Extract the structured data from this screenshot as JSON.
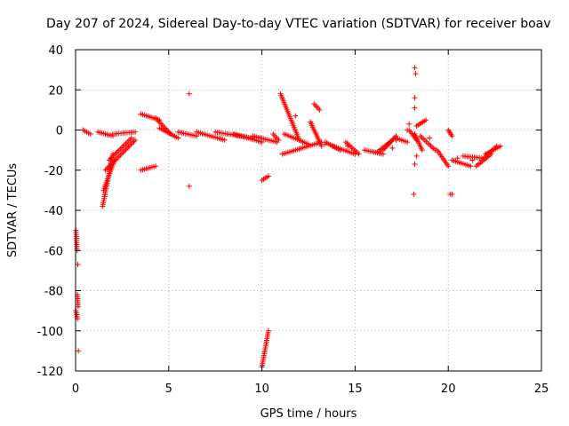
{
  "chart_data": {
    "type": "scatter",
    "title": "Day 207 of 2024, Sidereal Day-to-day VTEC variation (SDTVAR) for receiver boav",
    "xlabel": "GPS time / hours",
    "ylabel": "SDTVAR / TECUs",
    "xlim": [
      0,
      25
    ],
    "ylim": [
      -120,
      40
    ],
    "xticks": [
      0,
      5,
      10,
      15,
      20,
      25
    ],
    "yticks": [
      -120,
      -100,
      -80,
      -60,
      -40,
      -20,
      0,
      20,
      40
    ],
    "xtick_labels": [
      "0",
      "5",
      "10",
      "15",
      "20",
      "25"
    ],
    "ytick_labels": [
      "-120",
      "-100",
      "-80",
      "-60",
      "-40",
      "-20",
      "0",
      "20",
      "40"
    ],
    "grid": true,
    "marker": "plus",
    "colors": {
      "series": "#ff0000",
      "grid": "#a0a0a0",
      "frame": "#000000"
    },
    "series": [
      {
        "name": "SDTVAR",
        "arcs": [
          {
            "x": [
              0.02,
              0.08
            ],
            "y": [
              -50,
              -60
            ]
          },
          {
            "x": [
              0.02,
              0.1
            ],
            "y": [
              -90,
              -94
            ]
          },
          {
            "x": [
              0.1,
              0.14
            ],
            "y": [
              -82,
              -88
            ]
          },
          {
            "x": [
              0.4,
              0.8
            ],
            "y": [
              0,
              -2
            ]
          },
          {
            "x": [
              1.2,
              2.0
            ],
            "y": [
              -1,
              -3
            ]
          },
          {
            "x": [
              1.45,
              2.0
            ],
            "y": [
              -38,
              -12
            ]
          },
          {
            "x": [
              1.5,
              2.1
            ],
            "y": [
              -30,
              -15
            ]
          },
          {
            "x": [
              1.6,
              3.2
            ],
            "y": [
              -20,
              -5
            ]
          },
          {
            "x": [
              1.8,
              3.0
            ],
            "y": [
              -15,
              -4
            ]
          },
          {
            "x": [
              2.0,
              3.2
            ],
            "y": [
              -2,
              -1
            ]
          },
          {
            "x": [
              3.5,
              4.3
            ],
            "y": [
              -20,
              -18
            ]
          },
          {
            "x": [
              3.5,
              4.5
            ],
            "y": [
              8,
              5
            ]
          },
          {
            "x": [
              4.3,
              5.1
            ],
            "y": [
              6,
              -2
            ]
          },
          {
            "x": [
              4.5,
              5.5
            ],
            "y": [
              1,
              -4
            ]
          },
          {
            "x": [
              5.5,
              6.5
            ],
            "y": [
              -1,
              -3
            ]
          },
          {
            "x": [
              6.5,
              8.0
            ],
            "y": [
              -1,
              -5
            ]
          },
          {
            "x": [
              7.5,
              9.5
            ],
            "y": [
              -1,
              -4
            ]
          },
          {
            "x": [
              8.5,
              10.0
            ],
            "y": [
              -2,
              -6
            ]
          },
          {
            "x": [
              9.5,
              10.8
            ],
            "y": [
              -3,
              -6
            ]
          },
          {
            "x": [
              10.0,
              10.35
            ],
            "y": [
              -118,
              -100
            ]
          },
          {
            "x": [
              10.0,
              10.35
            ],
            "y": [
              -25,
              -23
            ]
          },
          {
            "x": [
              10.6,
              10.9
            ],
            "y": [
              -2,
              -5
            ]
          },
          {
            "x": [
              11.0,
              12.0
            ],
            "y": [
              18,
              -5
            ]
          },
          {
            "x": [
              11.1,
              13.2
            ],
            "y": [
              -12,
              -6
            ]
          },
          {
            "x": [
              11.2,
              12.5
            ],
            "y": [
              -2,
              -7
            ]
          },
          {
            "x": [
              12.6,
              13.2
            ],
            "y": [
              4,
              -8
            ]
          },
          {
            "x": [
              12.8,
              13.1
            ],
            "y": [
              13,
              10
            ]
          },
          {
            "x": [
              13.4,
              14.2
            ],
            "y": [
              -6,
              -10
            ]
          },
          {
            "x": [
              13.8,
              15.0
            ],
            "y": [
              -8,
              -12
            ]
          },
          {
            "x": [
              14.5,
              15.2
            ],
            "y": [
              -6,
              -12
            ]
          },
          {
            "x": [
              15.5,
              16.5
            ],
            "y": [
              -10,
              -12
            ]
          },
          {
            "x": [
              16.2,
              17.0
            ],
            "y": [
              -11,
              -5
            ]
          },
          {
            "x": [
              16.5,
              17.2
            ],
            "y": [
              -10,
              -3
            ]
          },
          {
            "x": [
              17.2,
              17.8
            ],
            "y": [
              -4,
              -6
            ]
          },
          {
            "x": [
              17.9,
              18.3
            ],
            "y": [
              0,
              -5
            ]
          },
          {
            "x": [
              18.2,
              18.6
            ],
            "y": [
              -2,
              -10
            ]
          },
          {
            "x": [
              18.3,
              18.8
            ],
            "y": [
              2,
              5
            ]
          },
          {
            "x": [
              18.5,
              19.3
            ],
            "y": [
              -3,
              -10
            ]
          },
          {
            "x": [
              19.4,
              20.0
            ],
            "y": [
              -10,
              -18
            ]
          },
          {
            "x": [
              20.0,
              20.2
            ],
            "y": [
              0,
              -3
            ]
          },
          {
            "x": [
              20.2,
              21.2
            ],
            "y": [
              -15,
              -18
            ]
          },
          {
            "x": [
              20.8,
              21.8
            ],
            "y": [
              -13,
              -14
            ]
          },
          {
            "x": [
              21.5,
              22.3
            ],
            "y": [
              -18,
              -12
            ]
          },
          {
            "x": [
              21.8,
              22.6
            ],
            "y": [
              -15,
              -8
            ]
          },
          {
            "x": [
              22.0,
              22.8
            ],
            "y": [
              -12,
              -8
            ]
          }
        ],
        "points": [
          {
            "x": 0.15,
            "y": -110
          },
          {
            "x": 0.12,
            "y": -67
          },
          {
            "x": 6.1,
            "y": 18
          },
          {
            "x": 6.1,
            "y": -28
          },
          {
            "x": 11.8,
            "y": 7
          },
          {
            "x": 12.2,
            "y": -6
          },
          {
            "x": 13.4,
            "y": -7
          },
          {
            "x": 14.6,
            "y": -8
          },
          {
            "x": 17.0,
            "y": -9
          },
          {
            "x": 17.2,
            "y": -5
          },
          {
            "x": 17.8,
            "y": 0
          },
          {
            "x": 17.9,
            "y": 3
          },
          {
            "x": 18.2,
            "y": 31
          },
          {
            "x": 18.25,
            "y": 28
          },
          {
            "x": 18.2,
            "y": 16
          },
          {
            "x": 18.2,
            "y": 11
          },
          {
            "x": 18.15,
            "y": -32
          },
          {
            "x": 18.3,
            "y": -13
          },
          {
            "x": 18.2,
            "y": -17
          },
          {
            "x": 19.0,
            "y": -4
          },
          {
            "x": 20.1,
            "y": -32
          },
          {
            "x": 20.2,
            "y": -32
          },
          {
            "x": 20.5,
            "y": -14
          },
          {
            "x": 21.3,
            "y": -15
          }
        ]
      }
    ]
  }
}
